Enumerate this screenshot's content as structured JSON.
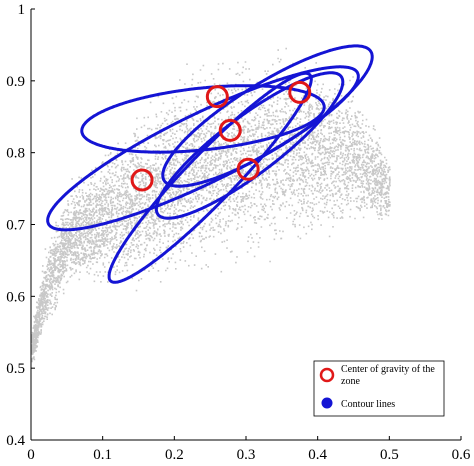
{
  "chart_data": {
    "type": "scatter",
    "title": "",
    "xlabel": "",
    "ylabel": "",
    "xlim": [
      0,
      0.6
    ],
    "ylim": [
      0.4,
      1.0
    ],
    "x_ticks": [
      "0",
      "0.1",
      "0.2",
      "0.3",
      "0.4",
      "0.5",
      "0.6"
    ],
    "y_ticks": [
      "0.4",
      "0.5",
      "0.6",
      "0.7",
      "0.8",
      "0.9",
      "1"
    ],
    "grid": false,
    "legend_position": "bottom-right",
    "colors": {
      "points": "#c8c8c8",
      "contour": "#1414d4",
      "center": "#e01818",
      "axes": "#000000"
    },
    "legend": [
      {
        "label": "Center of gravity of the zone",
        "marker": "open-circle",
        "color": "#e01818"
      },
      {
        "label": "Contour lines",
        "marker": "filled-circle",
        "color": "#1414d4"
      }
    ],
    "background_cloud": {
      "description_points": "dense grey scatter",
      "envelope_upper": [
        [
          0.0,
          0.56
        ],
        [
          0.02,
          0.68
        ],
        [
          0.05,
          0.76
        ],
        [
          0.1,
          0.82
        ],
        [
          0.15,
          0.87
        ],
        [
          0.2,
          0.92
        ],
        [
          0.25,
          0.95
        ],
        [
          0.3,
          0.965
        ],
        [
          0.35,
          0.965
        ],
        [
          0.4,
          0.95
        ],
        [
          0.45,
          0.92
        ],
        [
          0.5,
          0.8
        ]
      ],
      "envelope_lower": [
        [
          0.0,
          0.5
        ],
        [
          0.05,
          0.6
        ],
        [
          0.1,
          0.6
        ],
        [
          0.15,
          0.6
        ],
        [
          0.2,
          0.61
        ],
        [
          0.25,
          0.62
        ],
        [
          0.3,
          0.63
        ],
        [
          0.35,
          0.645
        ],
        [
          0.4,
          0.66
        ],
        [
          0.45,
          0.68
        ],
        [
          0.5,
          0.69
        ]
      ]
    },
    "zone_centers": [
      {
        "x": 0.155,
        "y": 0.762
      },
      {
        "x": 0.26,
        "y": 0.878
      },
      {
        "x": 0.278,
        "y": 0.831
      },
      {
        "x": 0.303,
        "y": 0.777
      },
      {
        "x": 0.375,
        "y": 0.884
      }
    ],
    "contour_ellipses": [
      {
        "cx": 0.24,
        "cy": 0.806,
        "rx": 0.24,
        "ry": 0.048,
        "angle_deg": -26
      },
      {
        "cx": 0.33,
        "cy": 0.851,
        "rx": 0.17,
        "ry": 0.045,
        "angle_deg": -32
      },
      {
        "cx": 0.24,
        "cy": 0.847,
        "rx": 0.17,
        "ry": 0.043,
        "angle_deg": -6
      },
      {
        "cx": 0.305,
        "cy": 0.81,
        "rx": 0.16,
        "ry": 0.04,
        "angle_deg": -37
      },
      {
        "cx": 0.25,
        "cy": 0.765,
        "rx": 0.2,
        "ry": 0.034,
        "angle_deg": -46
      }
    ]
  }
}
